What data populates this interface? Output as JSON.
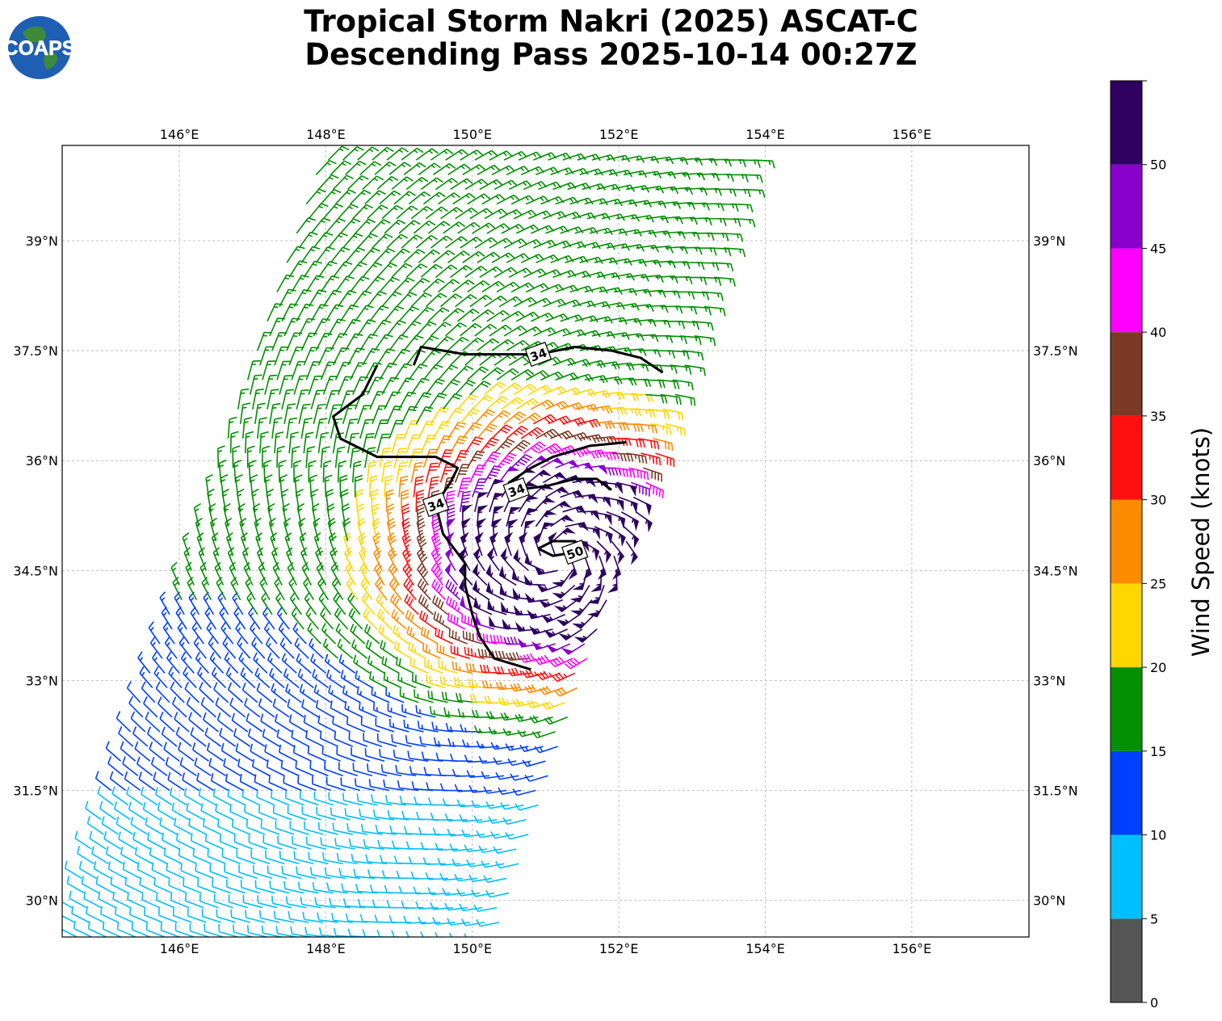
{
  "title": {
    "line1": "Tropical Storm Nakri (2025) ASCAT-C",
    "line2": "Descending Pass 2025-10-14 00:27Z"
  },
  "logo": {
    "text": "COAPS"
  },
  "chart_data": {
    "type": "wind-barb-map",
    "projection": "lat-lon",
    "xlim": [
      144.4,
      157.6
    ],
    "ylim": [
      29.5,
      40.3
    ],
    "grid": true,
    "x_ticks": [
      {
        "value": 146,
        "label": "146°E"
      },
      {
        "value": 148,
        "label": "148°E"
      },
      {
        "value": 150,
        "label": "150°E"
      },
      {
        "value": 152,
        "label": "152°E"
      },
      {
        "value": 154,
        "label": "154°E"
      },
      {
        "value": 156,
        "label": "156°E"
      }
    ],
    "y_ticks": [
      {
        "value": 30,
        "label": "30°N"
      },
      {
        "value": 31.5,
        "label": "31.5°N"
      },
      {
        "value": 33,
        "label": "33°N"
      },
      {
        "value": 34.5,
        "label": "34.5°N"
      },
      {
        "value": 36,
        "label": "36°N"
      },
      {
        "value": 37.5,
        "label": "37.5°N"
      },
      {
        "value": 39,
        "label": "39°N"
      }
    ],
    "storm_center": {
      "lon": 151.2,
      "lat": 34.7
    },
    "swath": {
      "lat_south": 29.5,
      "lat_north": 40.3,
      "lon_west_south": 144.4,
      "lon_west_north": 148.0,
      "width_deg": 5.9
    },
    "contours": [
      {
        "level": 34,
        "label": "34",
        "points": [
          [
            148.7,
            37.3
          ],
          [
            148.5,
            36.9
          ],
          [
            148.1,
            36.6
          ],
          [
            148.2,
            36.3
          ],
          [
            148.7,
            36.05
          ],
          [
            149.5,
            36.05
          ],
          [
            149.8,
            35.9
          ],
          [
            149.7,
            35.7
          ],
          [
            149.5,
            35.4
          ],
          [
            149.6,
            35.0
          ],
          [
            149.9,
            34.6
          ],
          [
            149.9,
            34.3
          ],
          [
            150.0,
            33.9
          ],
          [
            150.1,
            33.6
          ],
          [
            150.3,
            33.3
          ],
          [
            150.8,
            33.15
          ]
        ]
      },
      {
        "level": 34,
        "label": "34",
        "points": [
          [
            149.2,
            37.3
          ],
          [
            149.3,
            37.55
          ],
          [
            149.9,
            37.45
          ],
          [
            150.4,
            37.45
          ],
          [
            150.9,
            37.45
          ],
          [
            151.4,
            37.55
          ],
          [
            151.9,
            37.5
          ],
          [
            152.3,
            37.4
          ],
          [
            152.6,
            37.2
          ]
        ]
      },
      {
        "level": 34,
        "label": "34",
        "points": [
          [
            152.1,
            36.25
          ],
          [
            151.6,
            36.2
          ],
          [
            151.1,
            36.05
          ],
          [
            150.8,
            35.9
          ],
          [
            150.5,
            35.7
          ],
          [
            150.6,
            35.6
          ],
          [
            151.0,
            35.65
          ],
          [
            151.4,
            35.75
          ],
          [
            151.7,
            35.75
          ],
          [
            151.9,
            35.6
          ]
        ]
      },
      {
        "level": 50,
        "label": "50",
        "points": [
          [
            150.9,
            34.8
          ],
          [
            151.1,
            34.9
          ],
          [
            151.4,
            34.9
          ],
          [
            151.4,
            34.75
          ],
          [
            151.1,
            34.7
          ],
          [
            150.9,
            34.8
          ]
        ]
      }
    ],
    "colorbar": {
      "label": "Wind Speed (knots)",
      "bounds": [
        0,
        5,
        10,
        15,
        20,
        25,
        30,
        35,
        40,
        45,
        50,
        55
      ],
      "tick_labels": [
        "0",
        "5",
        "10",
        "15",
        "20",
        "25",
        "30",
        "35",
        "40",
        "45",
        "50"
      ],
      "colors": [
        "#555555",
        "#00bfff",
        "#0040ff",
        "#009000",
        "#ffd700",
        "#ff8c00",
        "#ff1010",
        "#7b3a25",
        "#ff00ff",
        "#8800cc",
        "#2e0060"
      ]
    }
  }
}
